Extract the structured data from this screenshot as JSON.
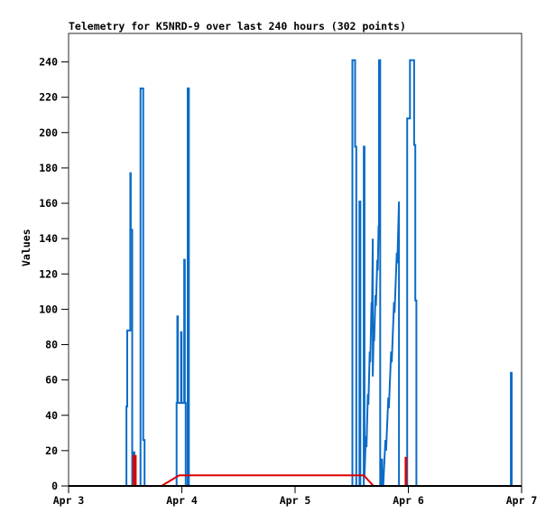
{
  "page": {
    "background_color": "#ffffff",
    "text_color": "#000000"
  },
  "chart_data": {
    "type": "line",
    "title": "Telemetry for K5NRD-9 over last 240 hours (302 points)",
    "ylabel": "Values",
    "xlabel": "",
    "grid": false,
    "legend": false,
    "frame_color": "#2a2a2a",
    "axis_color": "#000000",
    "x_axis": {
      "tick_labels": [
        "Apr 3",
        "Apr 4",
        "Apr 5",
        "Apr 6",
        "Apr 7"
      ],
      "tick_positions": [
        0,
        1,
        2,
        3,
        4
      ],
      "range": [
        0,
        4
      ]
    },
    "y_axis": {
      "min": 0,
      "max": 240,
      "step": 20,
      "display_max": 256
    },
    "series": [
      {
        "name": "blue-telemetry-series",
        "color": "#0b6bc7",
        "points": [
          [
            0.0,
            0
          ],
          [
            0.511,
            0
          ],
          [
            0.511,
            45
          ],
          [
            0.518,
            45
          ],
          [
            0.518,
            88
          ],
          [
            0.545,
            88
          ],
          [
            0.545,
            177
          ],
          [
            0.549,
            177
          ],
          [
            0.549,
            145
          ],
          [
            0.562,
            145
          ],
          [
            0.562,
            0
          ],
          [
            0.576,
            0
          ],
          [
            0.576,
            19
          ],
          [
            0.581,
            19
          ],
          [
            0.581,
            0
          ],
          [
            0.635,
            0
          ],
          [
            0.635,
            225
          ],
          [
            0.659,
            225
          ],
          [
            0.659,
            26
          ],
          [
            0.671,
            26
          ],
          [
            0.671,
            0
          ],
          [
            0.954,
            0
          ],
          [
            0.954,
            47
          ],
          [
            0.96,
            47
          ],
          [
            0.96,
            96
          ],
          [
            0.965,
            96
          ],
          [
            0.965,
            47
          ],
          [
            0.993,
            47
          ],
          [
            0.993,
            87
          ],
          [
            0.998,
            87
          ],
          [
            0.998,
            47
          ],
          [
            1.021,
            47
          ],
          [
            1.021,
            128
          ],
          [
            1.026,
            128
          ],
          [
            1.026,
            47
          ],
          [
            1.034,
            47
          ],
          [
            1.034,
            0
          ],
          [
            1.052,
            0
          ],
          [
            1.052,
            225
          ],
          [
            1.062,
            225
          ],
          [
            1.062,
            0
          ],
          [
            2.506,
            0
          ],
          [
            2.506,
            241
          ],
          [
            2.53,
            241
          ],
          [
            2.53,
            192
          ],
          [
            2.54,
            192
          ],
          [
            2.54,
            0
          ],
          [
            2.568,
            0
          ],
          [
            2.568,
            161
          ],
          [
            2.576,
            161
          ],
          [
            2.576,
            0
          ],
          [
            2.606,
            0
          ],
          [
            2.606,
            192
          ],
          [
            2.613,
            192
          ],
          [
            2.613,
            6
          ],
          [
            2.625,
            28
          ],
          [
            2.63,
            22
          ],
          [
            2.642,
            52
          ],
          [
            2.647,
            46
          ],
          [
            2.659,
            76
          ],
          [
            2.664,
            70
          ],
          [
            2.675,
            104
          ],
          [
            2.679,
            98
          ],
          [
            2.686,
            140
          ],
          [
            2.686,
            62
          ],
          [
            2.694,
            88
          ],
          [
            2.698,
            82
          ],
          [
            2.71,
            108
          ],
          [
            2.714,
            102
          ],
          [
            2.726,
            128
          ],
          [
            2.73,
            122
          ],
          [
            2.737,
            147
          ],
          [
            2.741,
            147
          ],
          [
            2.741,
            241
          ],
          [
            2.751,
            241
          ],
          [
            2.751,
            0
          ],
          [
            2.762,
            0
          ],
          [
            2.762,
            15
          ],
          [
            2.768,
            15
          ],
          [
            2.768,
            0
          ],
          [
            2.778,
            0
          ],
          [
            2.798,
            26
          ],
          [
            2.803,
            20
          ],
          [
            2.823,
            50
          ],
          [
            2.828,
            44
          ],
          [
            2.848,
            76
          ],
          [
            2.853,
            70
          ],
          [
            2.873,
            104
          ],
          [
            2.878,
            98
          ],
          [
            2.898,
            132
          ],
          [
            2.903,
            126
          ],
          [
            2.917,
            161
          ],
          [
            2.917,
            0
          ],
          [
            2.99,
            0
          ],
          [
            2.99,
            208
          ],
          [
            3.014,
            208
          ],
          [
            3.014,
            241
          ],
          [
            3.051,
            241
          ],
          [
            3.051,
            193
          ],
          [
            3.061,
            193
          ],
          [
            3.061,
            105
          ],
          [
            3.071,
            105
          ],
          [
            3.071,
            0
          ],
          [
            3.905,
            0
          ],
          [
            3.905,
            64
          ],
          [
            3.912,
            64
          ],
          [
            3.912,
            0
          ],
          [
            4.0,
            0
          ]
        ]
      },
      {
        "name": "red-telemetry-series",
        "color": "#dd0000",
        "points": [
          [
            0.0,
            0
          ],
          [
            0.574,
            0
          ],
          [
            0.574,
            17
          ],
          [
            0.579,
            17
          ],
          [
            0.579,
            0
          ],
          [
            0.588,
            0
          ],
          [
            0.588,
            17
          ],
          [
            0.593,
            17
          ],
          [
            0.593,
            0
          ],
          [
            0.82,
            0
          ],
          [
            0.976,
            6
          ],
          [
            2.606,
            6
          ],
          [
            2.693,
            0
          ],
          [
            2.975,
            0
          ],
          [
            2.975,
            16
          ],
          [
            2.981,
            16
          ],
          [
            2.981,
            0
          ],
          [
            4.0,
            0
          ]
        ]
      }
    ]
  }
}
